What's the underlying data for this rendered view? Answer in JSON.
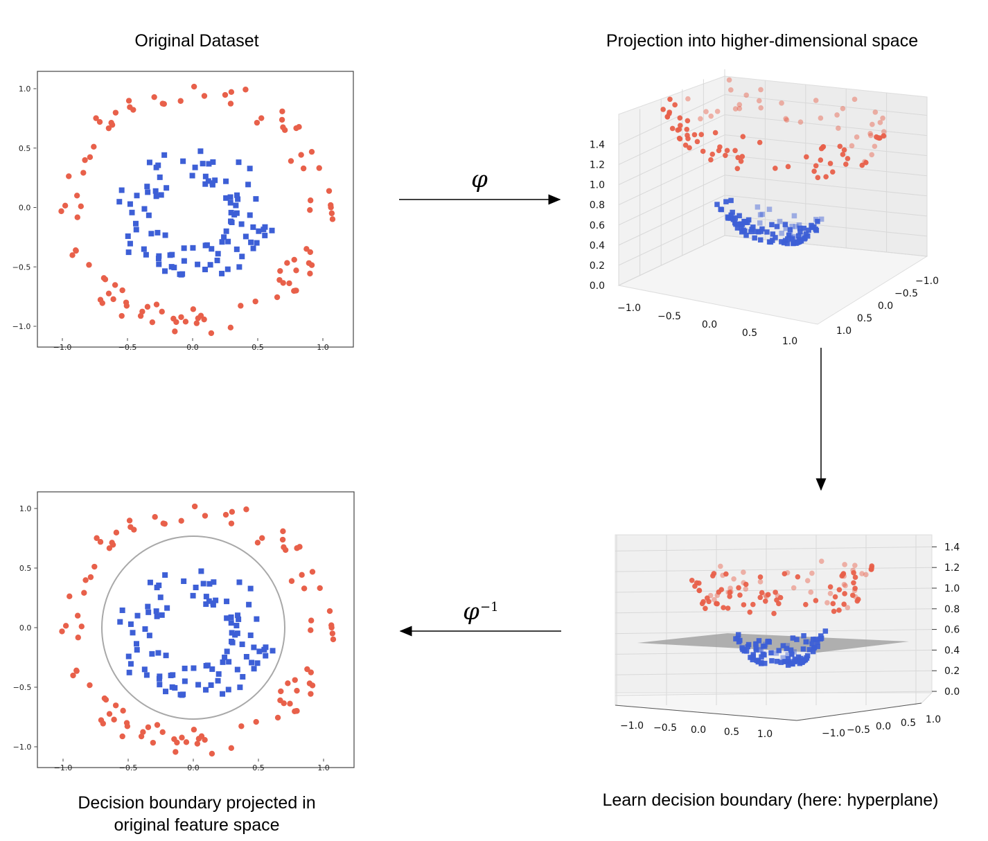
{
  "titles": {
    "original": "Original Dataset",
    "projection": "Projection into higher-dimensional space",
    "learn": "Learn decision boundary (here: hyperplane)",
    "projected_line1": "Decision boundary projected in",
    "projected_line2": "original feature space"
  },
  "arrows": {
    "phi": "φ",
    "phi_inv": "φ",
    "phi_inv_sup": "−1"
  },
  "colors": {
    "outer_class": "#e8604a",
    "inner_class": "#3d5fd6",
    "boundary": "#a8a8a8"
  },
  "chart_data": [
    {
      "type": "scatter",
      "title": "Original Dataset",
      "xlim": [
        -1.2,
        1.2
      ],
      "ylim": [
        -1.1,
        1.1
      ],
      "xticks": [
        "−1.0",
        "−0.5",
        "0.0",
        "0.5",
        "1.0"
      ],
      "yticks": [
        "1.0",
        "0.5",
        "0.0",
        "−0.5",
        "−1.0"
      ],
      "series": [
        {
          "marker": "circle",
          "description_radius_range": [
            0.85,
            1.08
          ]
        },
        {
          "marker": "square",
          "description_radius_range": [
            0.3,
            0.6
          ]
        }
      ]
    },
    {
      "type": "scatter",
      "title": "Projection into higher-dimensional space",
      "zticks": [
        "1.4",
        "1.2",
        "1.0",
        "0.8",
        "0.6",
        "0.4",
        "0.2",
        "0.0"
      ],
      "xticks": [
        "−1.0",
        "−0.5",
        "0.0",
        "0.5",
        "1.0"
      ],
      "yticks": [
        "−1.0",
        "−0.5",
        "0.0",
        "0.5",
        "1.0"
      ]
    },
    {
      "type": "scatter",
      "title": "Learn decision boundary (here: hyperplane)",
      "zticks": [
        "1.4",
        "1.2",
        "1.0",
        "0.8",
        "0.6",
        "0.4",
        "0.2",
        "0.0"
      ],
      "xticks": [
        "−1.0",
        "−0.5",
        "0.0",
        "0.5",
        "1.0"
      ],
      "yticks": [
        "−1.0",
        "−0.5",
        "0.0",
        "0.5",
        "1.0"
      ]
    },
    {
      "type": "scatter",
      "title": "Decision boundary projected in original feature space",
      "xlim": [
        -1.2,
        1.2
      ],
      "ylim": [
        -1.1,
        1.1
      ],
      "xticks": [
        "−1.0",
        "−0.5",
        "0.0",
        "0.5",
        "1.0"
      ],
      "yticks": [
        "1.0",
        "0.5",
        "0.0",
        "−0.5",
        "−1.0"
      ],
      "boundary": {
        "shape": "circle",
        "radius": 0.7
      }
    }
  ]
}
